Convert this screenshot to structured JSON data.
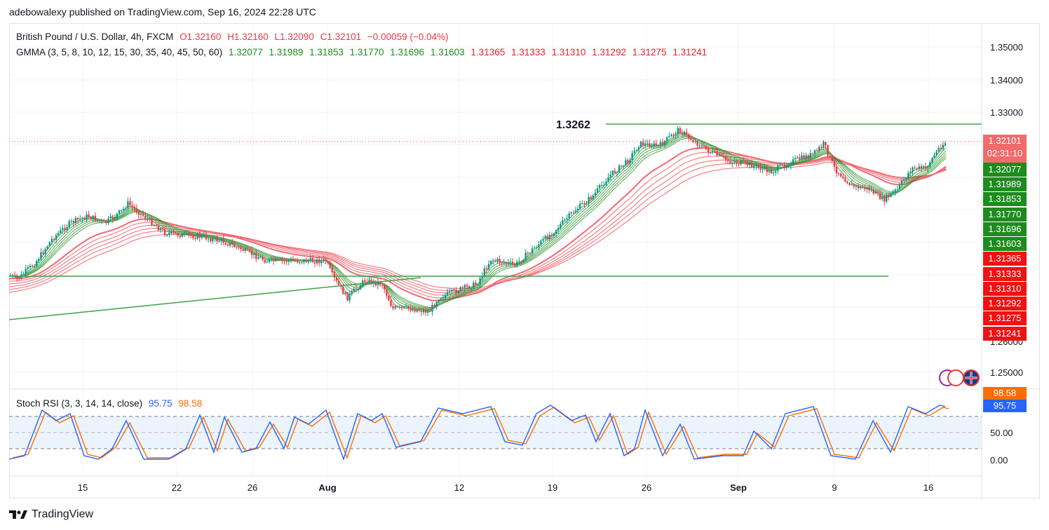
{
  "publisher_line": "adebowalexy published on TradingView.com, Sep 16, 2024 22:28 UTC",
  "symbol_line": {
    "title": "British Pound / U.S. Dollar, 4h, FXCM",
    "open": "O1.32160",
    "high": "H1.32160",
    "low": "L1.32090",
    "close": "C1.32101",
    "change": "−0.00059 (−0.04%)"
  },
  "gmma_line": {
    "label": "GMMA (3, 5, 8, 10, 12, 15, 30, 35, 40, 45, 50, 60)",
    "short_values": [
      "1.32077",
      "1.31989",
      "1.31853",
      "1.31770",
      "1.31696",
      "1.31603"
    ],
    "long_values": [
      "1.31365",
      "1.31333",
      "1.31310",
      "1.31292",
      "1.31275",
      "1.31241"
    ]
  },
  "annotation_level": "1.3262",
  "price_axis": {
    "ticks": [
      "1.35000",
      "1.34000",
      "1.33000",
      "1.26000",
      "1.25000"
    ],
    "last_price": "1.32101",
    "countdown": "02:31:10",
    "colors": {
      "up": "#089981",
      "down": "#f23645",
      "gmma_short": "#1e8b1e",
      "gmma_long": "#f01212",
      "last": "#f06b6b"
    }
  },
  "stoch_rsi": {
    "label": "Stoch RSI (3, 3, 14, 14, close)",
    "k_value": "95.75",
    "d_value": "98.58",
    "ticks": [
      "50.00",
      "0.00"
    ],
    "k_color": "#2962ff",
    "d_color": "#ff6d00"
  },
  "x_axis": {
    "labels": [
      {
        "text": "15",
        "bold": false
      },
      {
        "text": "22",
        "bold": false
      },
      {
        "text": "26",
        "bold": false
      },
      {
        "text": "Aug",
        "bold": true
      },
      {
        "text": "12",
        "bold": false
      },
      {
        "text": "19",
        "bold": false
      },
      {
        "text": "26",
        "bold": false
      },
      {
        "text": "Sep",
        "bold": true
      },
      {
        "text": "9",
        "bold": false
      },
      {
        "text": "16",
        "bold": false
      }
    ]
  },
  "footer": {
    "brand": "TradingView"
  },
  "chart_data": {
    "type": "line",
    "title": "British Pound / U.S. Dollar, 4h, FXCM",
    "x_labels": [
      "15",
      "22",
      "26",
      "Aug",
      "12",
      "19",
      "26",
      "Sep",
      "9",
      "16"
    ],
    "key_points": [
      {
        "x": "Jul 11",
        "y": 1.287
      },
      {
        "x": "Jul 17",
        "y": 1.304
      },
      {
        "x": "Aug 1",
        "y": 1.28
      },
      {
        "x": "Aug 8",
        "y": 1.268
      },
      {
        "x": "Aug 27",
        "y": 1.3262
      },
      {
        "x": "Sep 6",
        "y": 1.324
      },
      {
        "x": "Sep 11",
        "y": 1.301
      },
      {
        "x": "Sep 16",
        "y": 1.32101
      }
    ],
    "horizontal_levels": [
      1.3262,
      1.286
    ],
    "y_ticks": [
      1.35,
      1.34,
      1.33,
      1.26,
      1.25
    ],
    "oscillator": {
      "name": "Stoch RSI",
      "k": 95.75,
      "d": 98.58,
      "levels": [
        80,
        50,
        20
      ],
      "range": [
        0,
        100
      ]
    }
  }
}
